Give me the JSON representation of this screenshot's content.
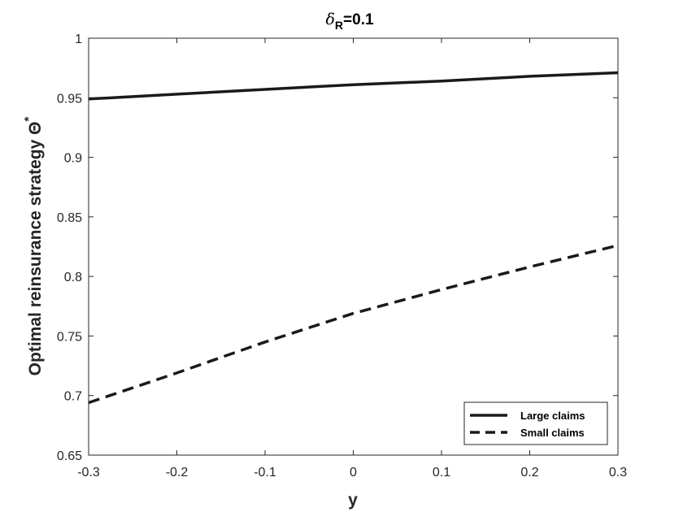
{
  "chart_data": {
    "type": "line",
    "title": {
      "symbol": "δ",
      "subscript": "R",
      "suffix": "=0.1"
    },
    "xlabel": "y",
    "ylabel": "Optimal reinsurance strategy Θ",
    "ylabel_superscript": "*",
    "xlim": [
      -0.3,
      0.3
    ],
    "ylim": [
      0.65,
      1
    ],
    "xticks": [
      -0.3,
      -0.2,
      -0.1,
      0,
      0.1,
      0.2,
      0.3
    ],
    "xtick_labels": [
      "-0.3",
      "-0.2",
      "-0.1",
      "0",
      "0.1",
      "0.2",
      "0.3"
    ],
    "yticks": [
      0.65,
      0.7,
      0.75,
      0.8,
      0.85,
      0.9,
      0.95,
      1
    ],
    "ytick_labels": [
      "0.65",
      "0.7",
      "0.75",
      "0.8",
      "0.85",
      "0.9",
      "0.95",
      "1"
    ],
    "grid": false,
    "legend_position": "bottom-right",
    "series": [
      {
        "name": "Large claims",
        "style": "solid",
        "color": "#1a1a1a",
        "x": [
          -0.3,
          -0.2,
          -0.1,
          0,
          0.1,
          0.2,
          0.3
        ],
        "y": [
          0.949,
          0.953,
          0.957,
          0.961,
          0.964,
          0.968,
          0.971
        ]
      },
      {
        "name": "Small claims",
        "style": "dashed",
        "color": "#1a1a1a",
        "x": [
          -0.3,
          -0.2,
          -0.1,
          0,
          0.1,
          0.2,
          0.3
        ],
        "y": [
          0.694,
          0.719,
          0.745,
          0.769,
          0.789,
          0.808,
          0.826
        ]
      }
    ]
  }
}
